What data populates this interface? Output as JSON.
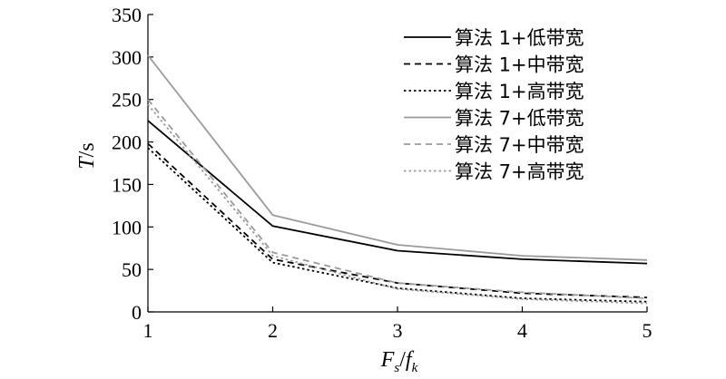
{
  "chart_data": {
    "type": "line",
    "xlabel": "Fs/fk",
    "ylabel": "T/s",
    "x": [
      1,
      2,
      3,
      4,
      5
    ],
    "xlim": [
      1,
      5
    ],
    "ylim": [
      0,
      350
    ],
    "xticks": [
      "1",
      "2",
      "3",
      "4",
      "5"
    ],
    "yticks": [
      "0",
      "50",
      "100",
      "150",
      "200",
      "250",
      "300",
      "350"
    ],
    "grid": false,
    "legend_position": "top-right",
    "series": [
      {
        "name": "算法 1+低带宽",
        "values": [
          225,
          101,
          72,
          62,
          57
        ],
        "color": "#000000",
        "dash": "solid"
      },
      {
        "name": "算法 1+中带宽",
        "values": [
          198,
          62,
          34,
          22,
          17
        ],
        "color": "#000000",
        "dash": "dash"
      },
      {
        "name": "算法 1+高带宽",
        "values": [
          193,
          58,
          28,
          16,
          12
        ],
        "color": "#000000",
        "dash": "dot"
      },
      {
        "name": "算法 7+低带宽",
        "values": [
          302,
          114,
          79,
          66,
          61
        ],
        "color": "#9a9a9a",
        "dash": "solid"
      },
      {
        "name": "算法 7+中带宽",
        "values": [
          250,
          70,
          34,
          23,
          16
        ],
        "color": "#9a9a9a",
        "dash": "dash"
      },
      {
        "name": "算法 7+高带宽",
        "values": [
          244,
          66,
          27,
          15,
          10
        ],
        "color": "#9a9a9a",
        "dash": "dot"
      }
    ]
  }
}
